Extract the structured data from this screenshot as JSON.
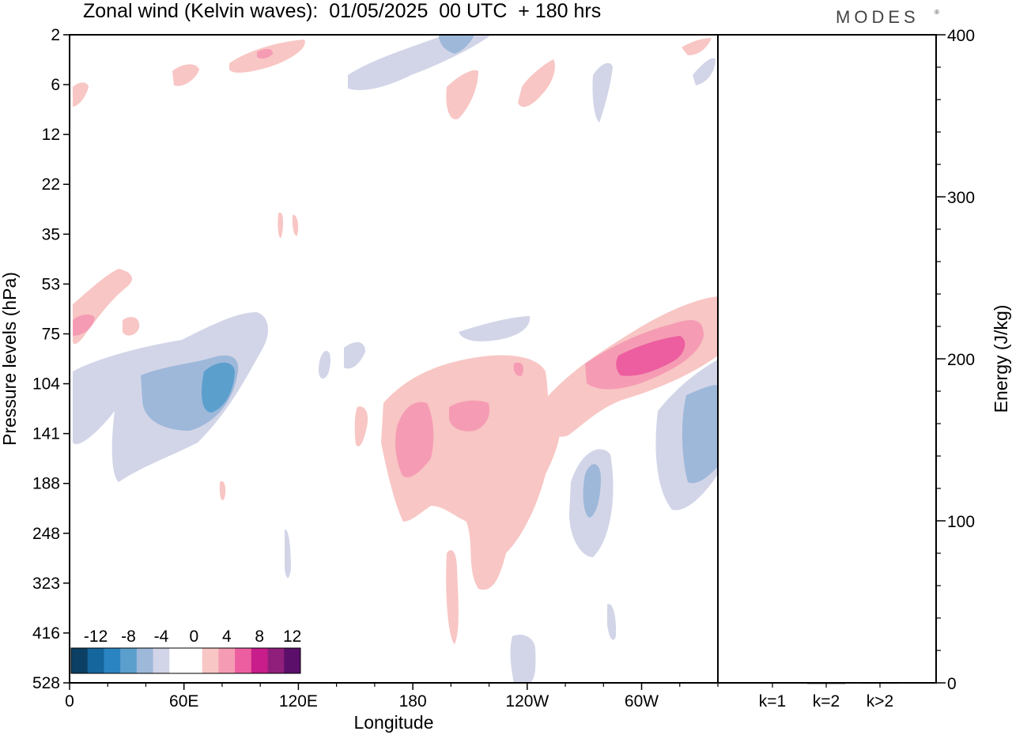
{
  "title": "Zonal wind (Kelvin waves):  01/05/2025  00 UTC  + 180 hrs",
  "brand": "MODES",
  "brand_mark": "®",
  "colors": {
    "neg_strong": "#0b3f63",
    "neg_12": "#14669d",
    "neg_10": "#2a84c1",
    "neg_8": "#5b9fcd",
    "neg_6": "#9eb8da",
    "neg_4": "#d2d5e8",
    "pos_4": "#f8c6c4",
    "pos_6": "#f59cb4",
    "pos_8": "#ec5ea0",
    "pos_10": "#c81d8a",
    "pos_12": "#901f7c",
    "pos_strong": "#5b0f6a"
  },
  "chart_data": [
    {
      "type": "heatmap",
      "title": "Zonal wind (Kelvin waves):  01/05/2025  00 UTC  + 180 hrs",
      "xlabel": "Longitude",
      "ylabel": "Pressure levels (hPa)",
      "x_ticks": [
        "0",
        "60E",
        "120E",
        "180",
        "120W",
        "60W"
      ],
      "y_ticks": [
        "2",
        "6",
        "12",
        "22",
        "35",
        "53",
        "75",
        "104",
        "141",
        "188",
        "248",
        "323",
        "416",
        "528"
      ],
      "colorbar": {
        "tick_labels": [
          "-12",
          "-8",
          "-4",
          "0",
          "4",
          "8",
          "12"
        ],
        "levels": [
          -14,
          -12,
          -10,
          -8,
          -6,
          -4,
          -2,
          2,
          4,
          6,
          8,
          10,
          12,
          14
        ]
      },
      "regions": [
        {
          "sign": "negative",
          "max_abs": 11,
          "x_range_deg": [
            40,
            95
          ],
          "p_range_hpa": [
            75,
            188
          ]
        },
        {
          "sign": "negative",
          "max_abs": 8,
          "x_range_deg": [
            265,
            300
          ],
          "p_range_hpa": [
            104,
            248
          ]
        },
        {
          "sign": "negative",
          "max_abs": 7,
          "x_range_deg": [
            300,
            340
          ],
          "p_range_hpa": [
            104,
            188
          ]
        },
        {
          "sign": "positive",
          "max_abs": 10,
          "x_range_deg": [
            265,
            340
          ],
          "p_range_hpa": [
            53,
            141
          ]
        },
        {
          "sign": "positive",
          "max_abs": 7,
          "x_range_deg": [
            160,
            245
          ],
          "p_range_hpa": [
            104,
            416
          ]
        },
        {
          "sign": "positive",
          "max_abs": 6,
          "x_range_deg": [
            0,
            30
          ],
          "p_range_hpa": [
            53,
            104
          ]
        },
        {
          "sign": "negative",
          "max_abs": 6,
          "x_range_deg": [
            145,
            205
          ],
          "p_range_hpa": [
            2,
            6
          ]
        },
        {
          "sign": "positive",
          "max_abs": 6,
          "x_range_deg": [
            80,
            145
          ],
          "p_range_hpa": [
            2,
            6
          ]
        }
      ]
    },
    {
      "type": "bar",
      "ylabel": "Energy (J/kg)",
      "categories": [
        "k=1",
        "k=2",
        "k>2"
      ],
      "values": [
        0.3,
        0.1,
        0.2
      ],
      "ylim": [
        0,
        400
      ],
      "y_ticks": [
        "0",
        "100",
        "200",
        "300",
        "400"
      ]
    }
  ]
}
